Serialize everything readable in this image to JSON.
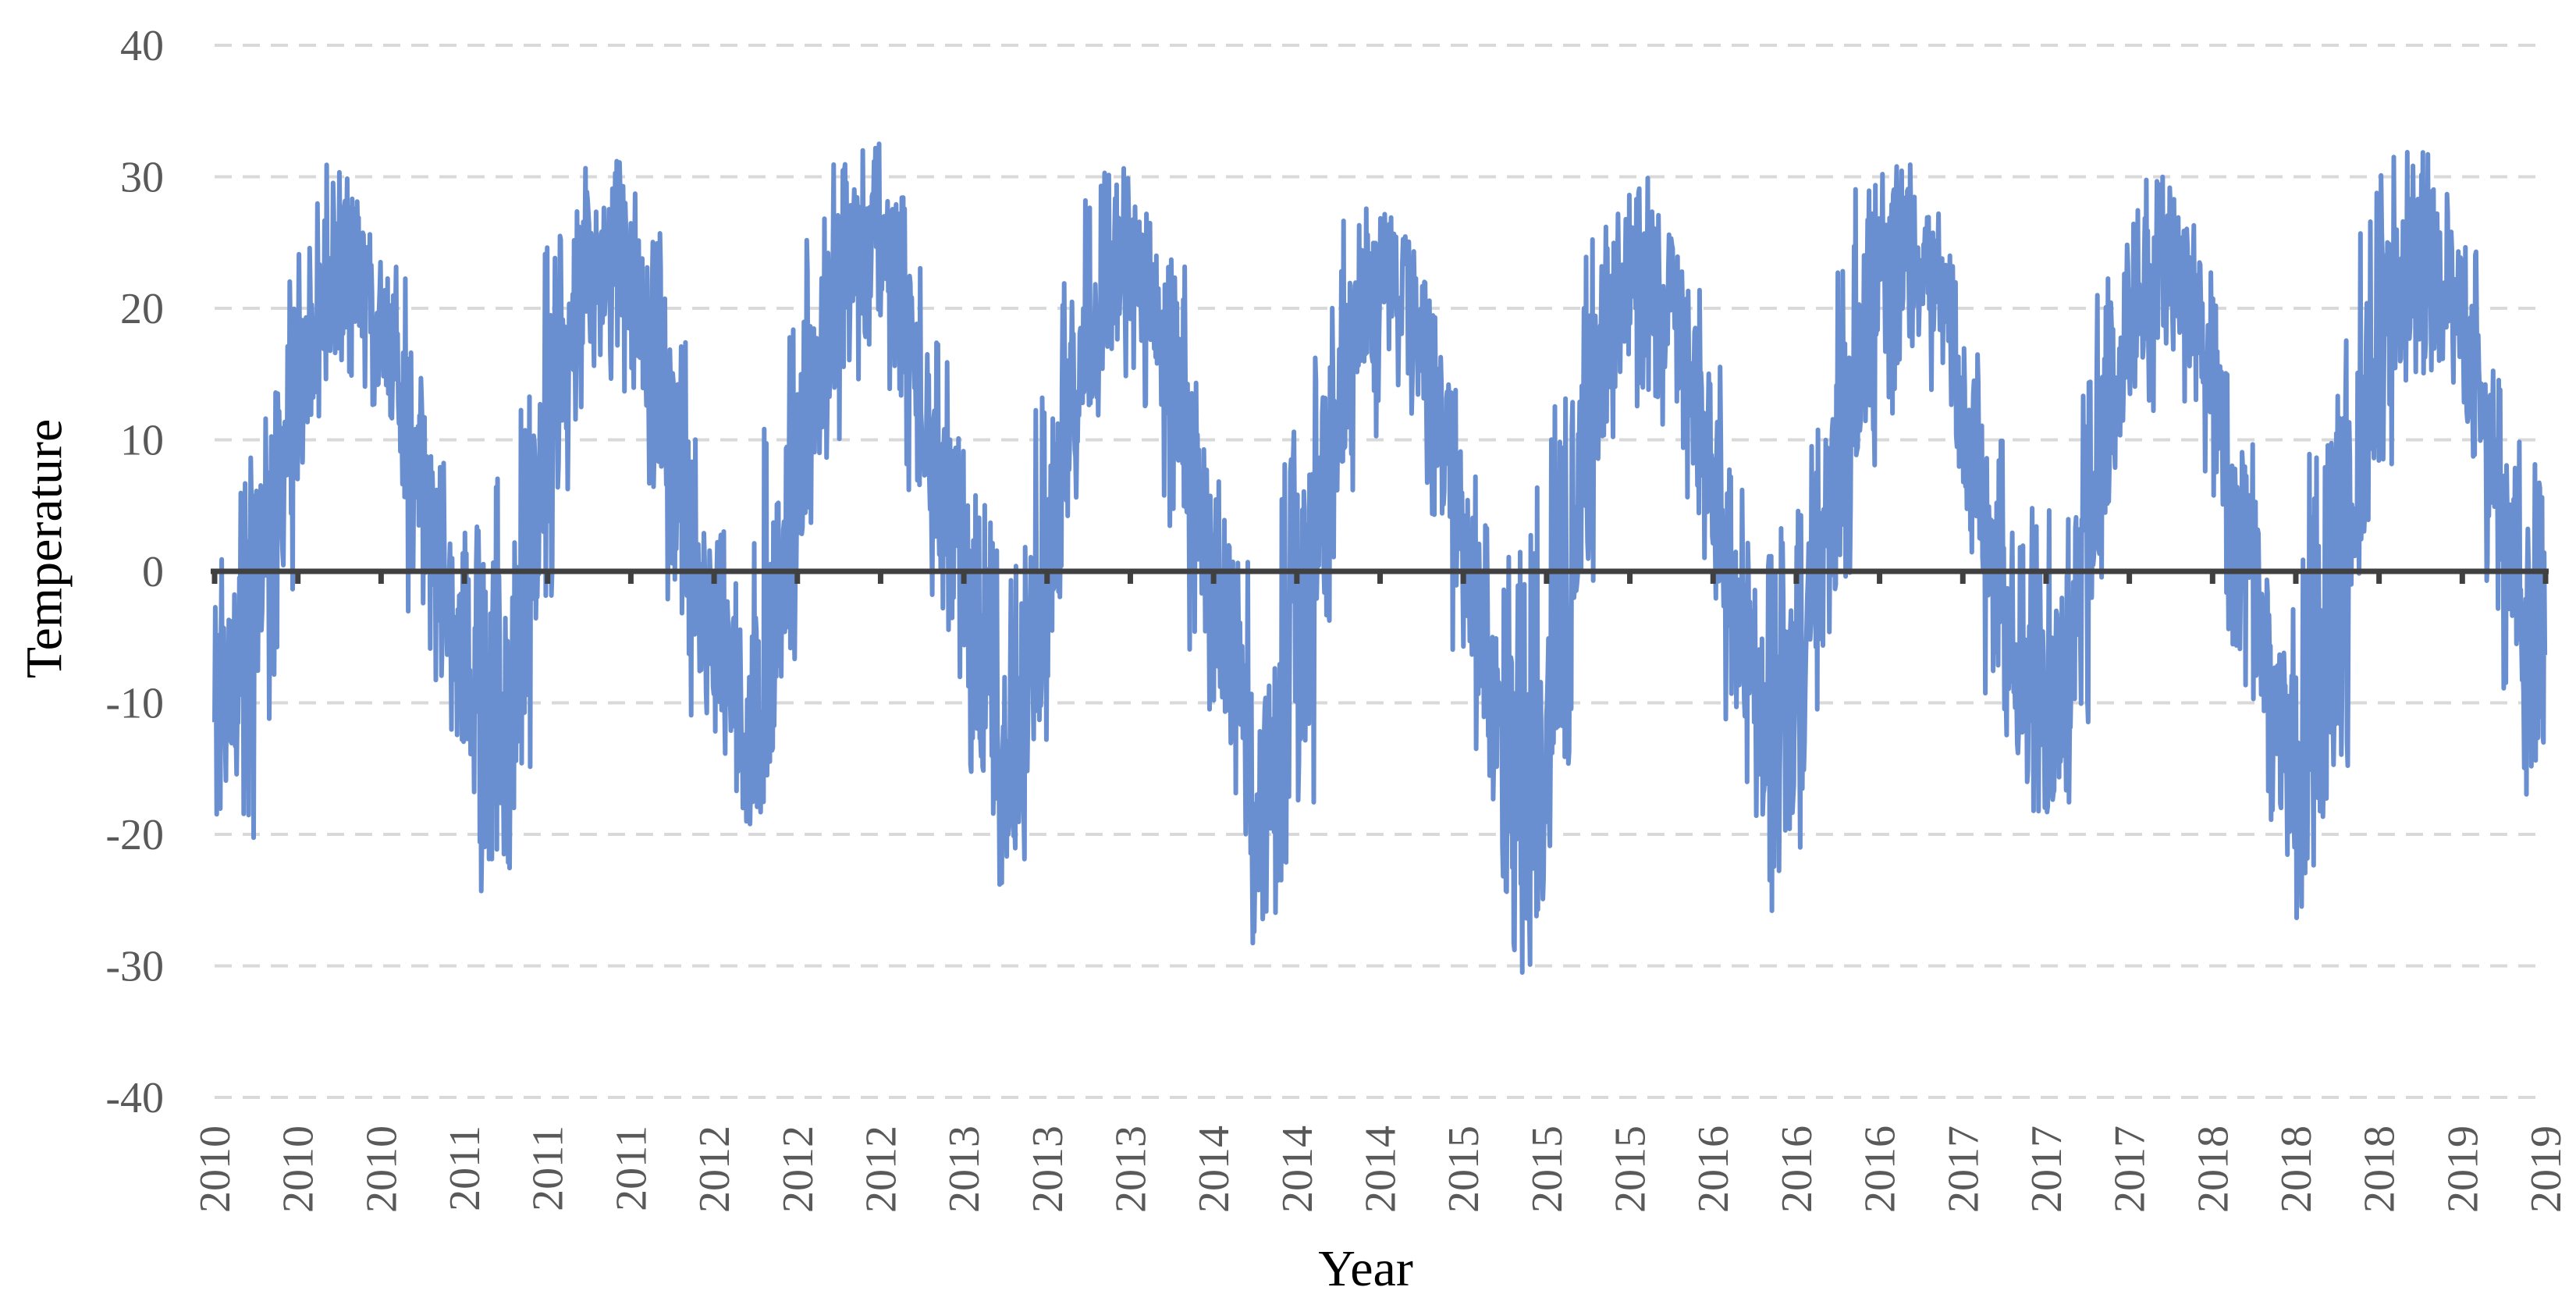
{
  "chart_data": {
    "type": "line",
    "title": "",
    "xlabel": "Year",
    "ylabel": "Temperature",
    "ylim": [
      -40,
      40
    ],
    "yticks": [
      40,
      30,
      20,
      10,
      0,
      -10,
      -20,
      -30,
      -40
    ],
    "xtick_labels": [
      "2010",
      "2010",
      "2010",
      "2011",
      "2011",
      "2011",
      "2012",
      "2012",
      "2012",
      "2013",
      "2013",
      "2013",
      "2014",
      "2014",
      "2014",
      "2015",
      "2015",
      "2015",
      "2016",
      "2016",
      "2016",
      "2017",
      "2017",
      "2017",
      "2018",
      "2018",
      "2018",
      "2019",
      "2019"
    ],
    "x_range": [
      "2010-01-01",
      "2019-01-01"
    ],
    "grid": "horizontal dashed",
    "legend": "none",
    "colors": {
      "series": "#6a8fd0",
      "zero_line": "#404040",
      "grid": "#d9d9d9",
      "tick_text": "#595959"
    },
    "series": [
      {
        "x": [
          "2010-01",
          "2010-02",
          "2010-03",
          "2010-04",
          "2010-05",
          "2010-06",
          "2010-07",
          "2010-08",
          "2010-09",
          "2010-10",
          "2010-11",
          "2010-12",
          "2011-01",
          "2011-02",
          "2011-03",
          "2011-04",
          "2011-05",
          "2011-06",
          "2011-07",
          "2011-08",
          "2011-09",
          "2011-10",
          "2011-11",
          "2011-12",
          "2012-01",
          "2012-02",
          "2012-03",
          "2012-04",
          "2012-05",
          "2012-06",
          "2012-07",
          "2012-08",
          "2012-09",
          "2012-10",
          "2012-11",
          "2012-12",
          "2013-01",
          "2013-02",
          "2013-03",
          "2013-04",
          "2013-05",
          "2013-06",
          "2013-07",
          "2013-08",
          "2013-09",
          "2013-10",
          "2013-11",
          "2013-12",
          "2014-01",
          "2014-02",
          "2014-03",
          "2014-04",
          "2014-05",
          "2014-06",
          "2014-07",
          "2014-08",
          "2014-09",
          "2014-10",
          "2014-11",
          "2014-12",
          "2015-01",
          "2015-02",
          "2015-03",
          "2015-04",
          "2015-05",
          "2015-06",
          "2015-07",
          "2015-08",
          "2015-09",
          "2015-10",
          "2015-11",
          "2015-12",
          "2016-01",
          "2016-02",
          "2016-03",
          "2016-04",
          "2016-05",
          "2016-06",
          "2016-07",
          "2016-08",
          "2016-09",
          "2016-10",
          "2016-11",
          "2016-12",
          "2017-01",
          "2017-02",
          "2017-03",
          "2017-04",
          "2017-05",
          "2017-06",
          "2017-07",
          "2017-08",
          "2017-09",
          "2017-10",
          "2017-11",
          "2017-12",
          "2018-01",
          "2018-02",
          "2018-03",
          "2018-04",
          "2018-05",
          "2018-06",
          "2018-07",
          "2018-08",
          "2018-09",
          "2018-10",
          "2018-11",
          "2018-12"
        ],
        "mean": [
          -9,
          -5,
          3,
          11,
          17,
          21,
          23,
          21,
          15,
          8,
          0,
          -7,
          -15,
          -11,
          -1,
          10,
          17,
          22,
          25,
          22,
          15,
          7,
          -1,
          -7,
          -11,
          -9,
          2,
          12,
          19,
          23,
          25,
          23,
          15,
          7,
          0,
          -9,
          -14,
          -10,
          -2,
          9,
          17,
          21,
          23,
          21,
          14,
          6,
          -2,
          -10,
          -18,
          -15,
          -4,
          8,
          16,
          20,
          23,
          21,
          14,
          6,
          -3,
          -12,
          -18,
          -17,
          -3,
          9,
          17,
          21,
          23,
          21,
          15,
          7,
          -1,
          -9,
          -14,
          -9,
          -1,
          10,
          17,
          22,
          25,
          23,
          16,
          8,
          0,
          -8,
          -12,
          -9,
          -1,
          9,
          17,
          21,
          23,
          21,
          15,
          7,
          -1,
          -10,
          -17,
          -12,
          -2,
          10,
          18,
          22,
          25,
          23,
          16,
          8,
          0,
          -5
        ],
        "min": [
          -19,
          -22,
          -12,
          -2,
          8,
          12,
          14,
          12,
          5,
          -4,
          -10,
          -18,
          -26,
          -25,
          -16,
          -2,
          6,
          12,
          14,
          12,
          4,
          -6,
          -12,
          -20,
          -20,
          -19,
          -8,
          2,
          8,
          13,
          15,
          13,
          5,
          -4,
          -10,
          -20,
          -24,
          -22,
          -13,
          -2,
          7,
          12,
          14,
          12,
          3,
          -6,
          -12,
          -20,
          -29,
          -28,
          -18,
          -4,
          6,
          10,
          13,
          11,
          3,
          -6,
          -14,
          -25,
          -31,
          -28,
          -15,
          -2,
          6,
          11,
          13,
          11,
          4,
          -5,
          -12,
          -19,
          -27,
          -22,
          -12,
          -2,
          7,
          12,
          15,
          13,
          5,
          -4,
          -11,
          -18,
          -22,
          -18,
          -12,
          -2,
          7,
          12,
          14,
          12,
          4,
          -6,
          -12,
          -20,
          -27,
          -24,
          -15,
          -1,
          8,
          12,
          15,
          13,
          5,
          -4,
          -11,
          -18
        ],
        "max": [
          4,
          9,
          14,
          26,
          28,
          31,
          31,
          28,
          24,
          18,
          10,
          4,
          4,
          9,
          14,
          26,
          28,
          31,
          33,
          29,
          26,
          20,
          12,
          6,
          6,
          12,
          20,
          26,
          31,
          33,
          33,
          29,
          25,
          18,
          12,
          6,
          3,
          10,
          14,
          24,
          29,
          31,
          31,
          28,
          24,
          17,
          10,
          3,
          3,
          9,
          12,
          22,
          27,
          28,
          28,
          26,
          22,
          15,
          8,
          4,
          3,
          8,
          14,
          26,
          29,
          30,
          30,
          27,
          23,
          16,
          9,
          4,
          4,
          10,
          15,
          27,
          30,
          31,
          31,
          28,
          24,
          18,
          10,
          5,
          5,
          10,
          16,
          28,
          28,
          30,
          30,
          27,
          24,
          17,
          10,
          4,
          4,
          10,
          18,
          27,
          31,
          32,
          32,
          30,
          25,
          16,
          10,
          11
        ]
      }
    ]
  }
}
